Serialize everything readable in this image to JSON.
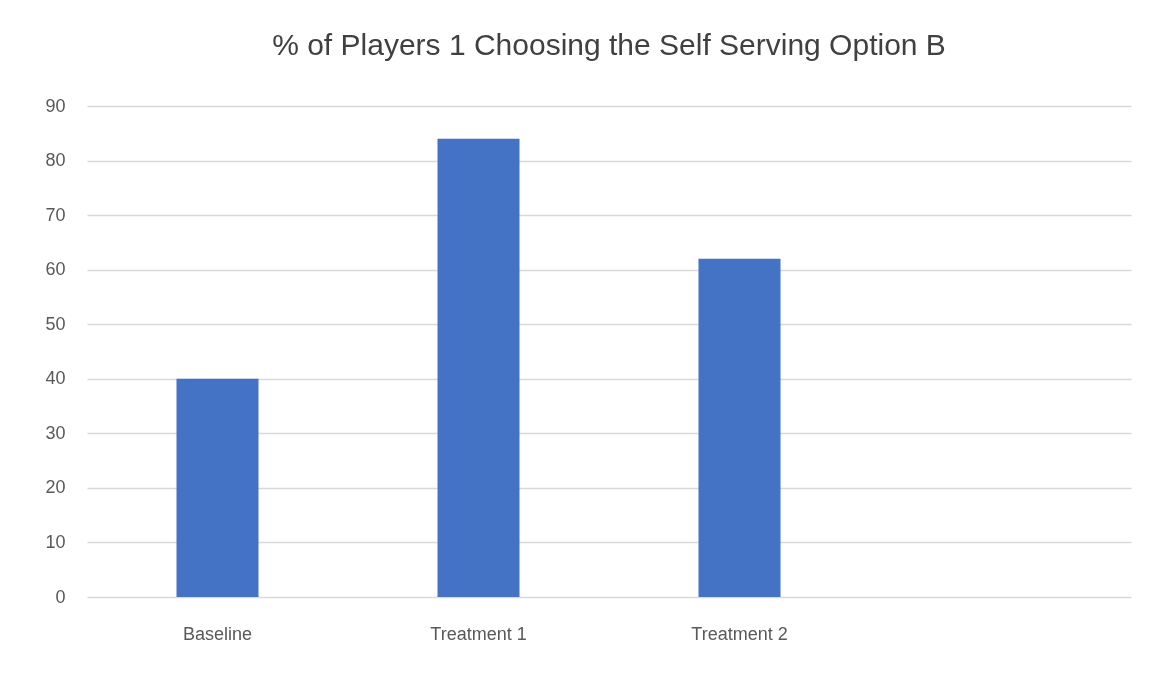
{
  "chart_data": {
    "type": "bar",
    "title": "% of Players 1 Choosing the Self Serving Option B",
    "categories": [
      "Baseline",
      "Treatment 1",
      "Treatment 2",
      null
    ],
    "values": [
      40,
      84,
      62,
      null
    ],
    "color": "#4472c4",
    "ylim": [
      0,
      90
    ],
    "yticks": [
      0,
      10,
      20,
      30,
      40,
      50,
      60,
      70,
      80,
      90
    ],
    "grid": "y"
  }
}
